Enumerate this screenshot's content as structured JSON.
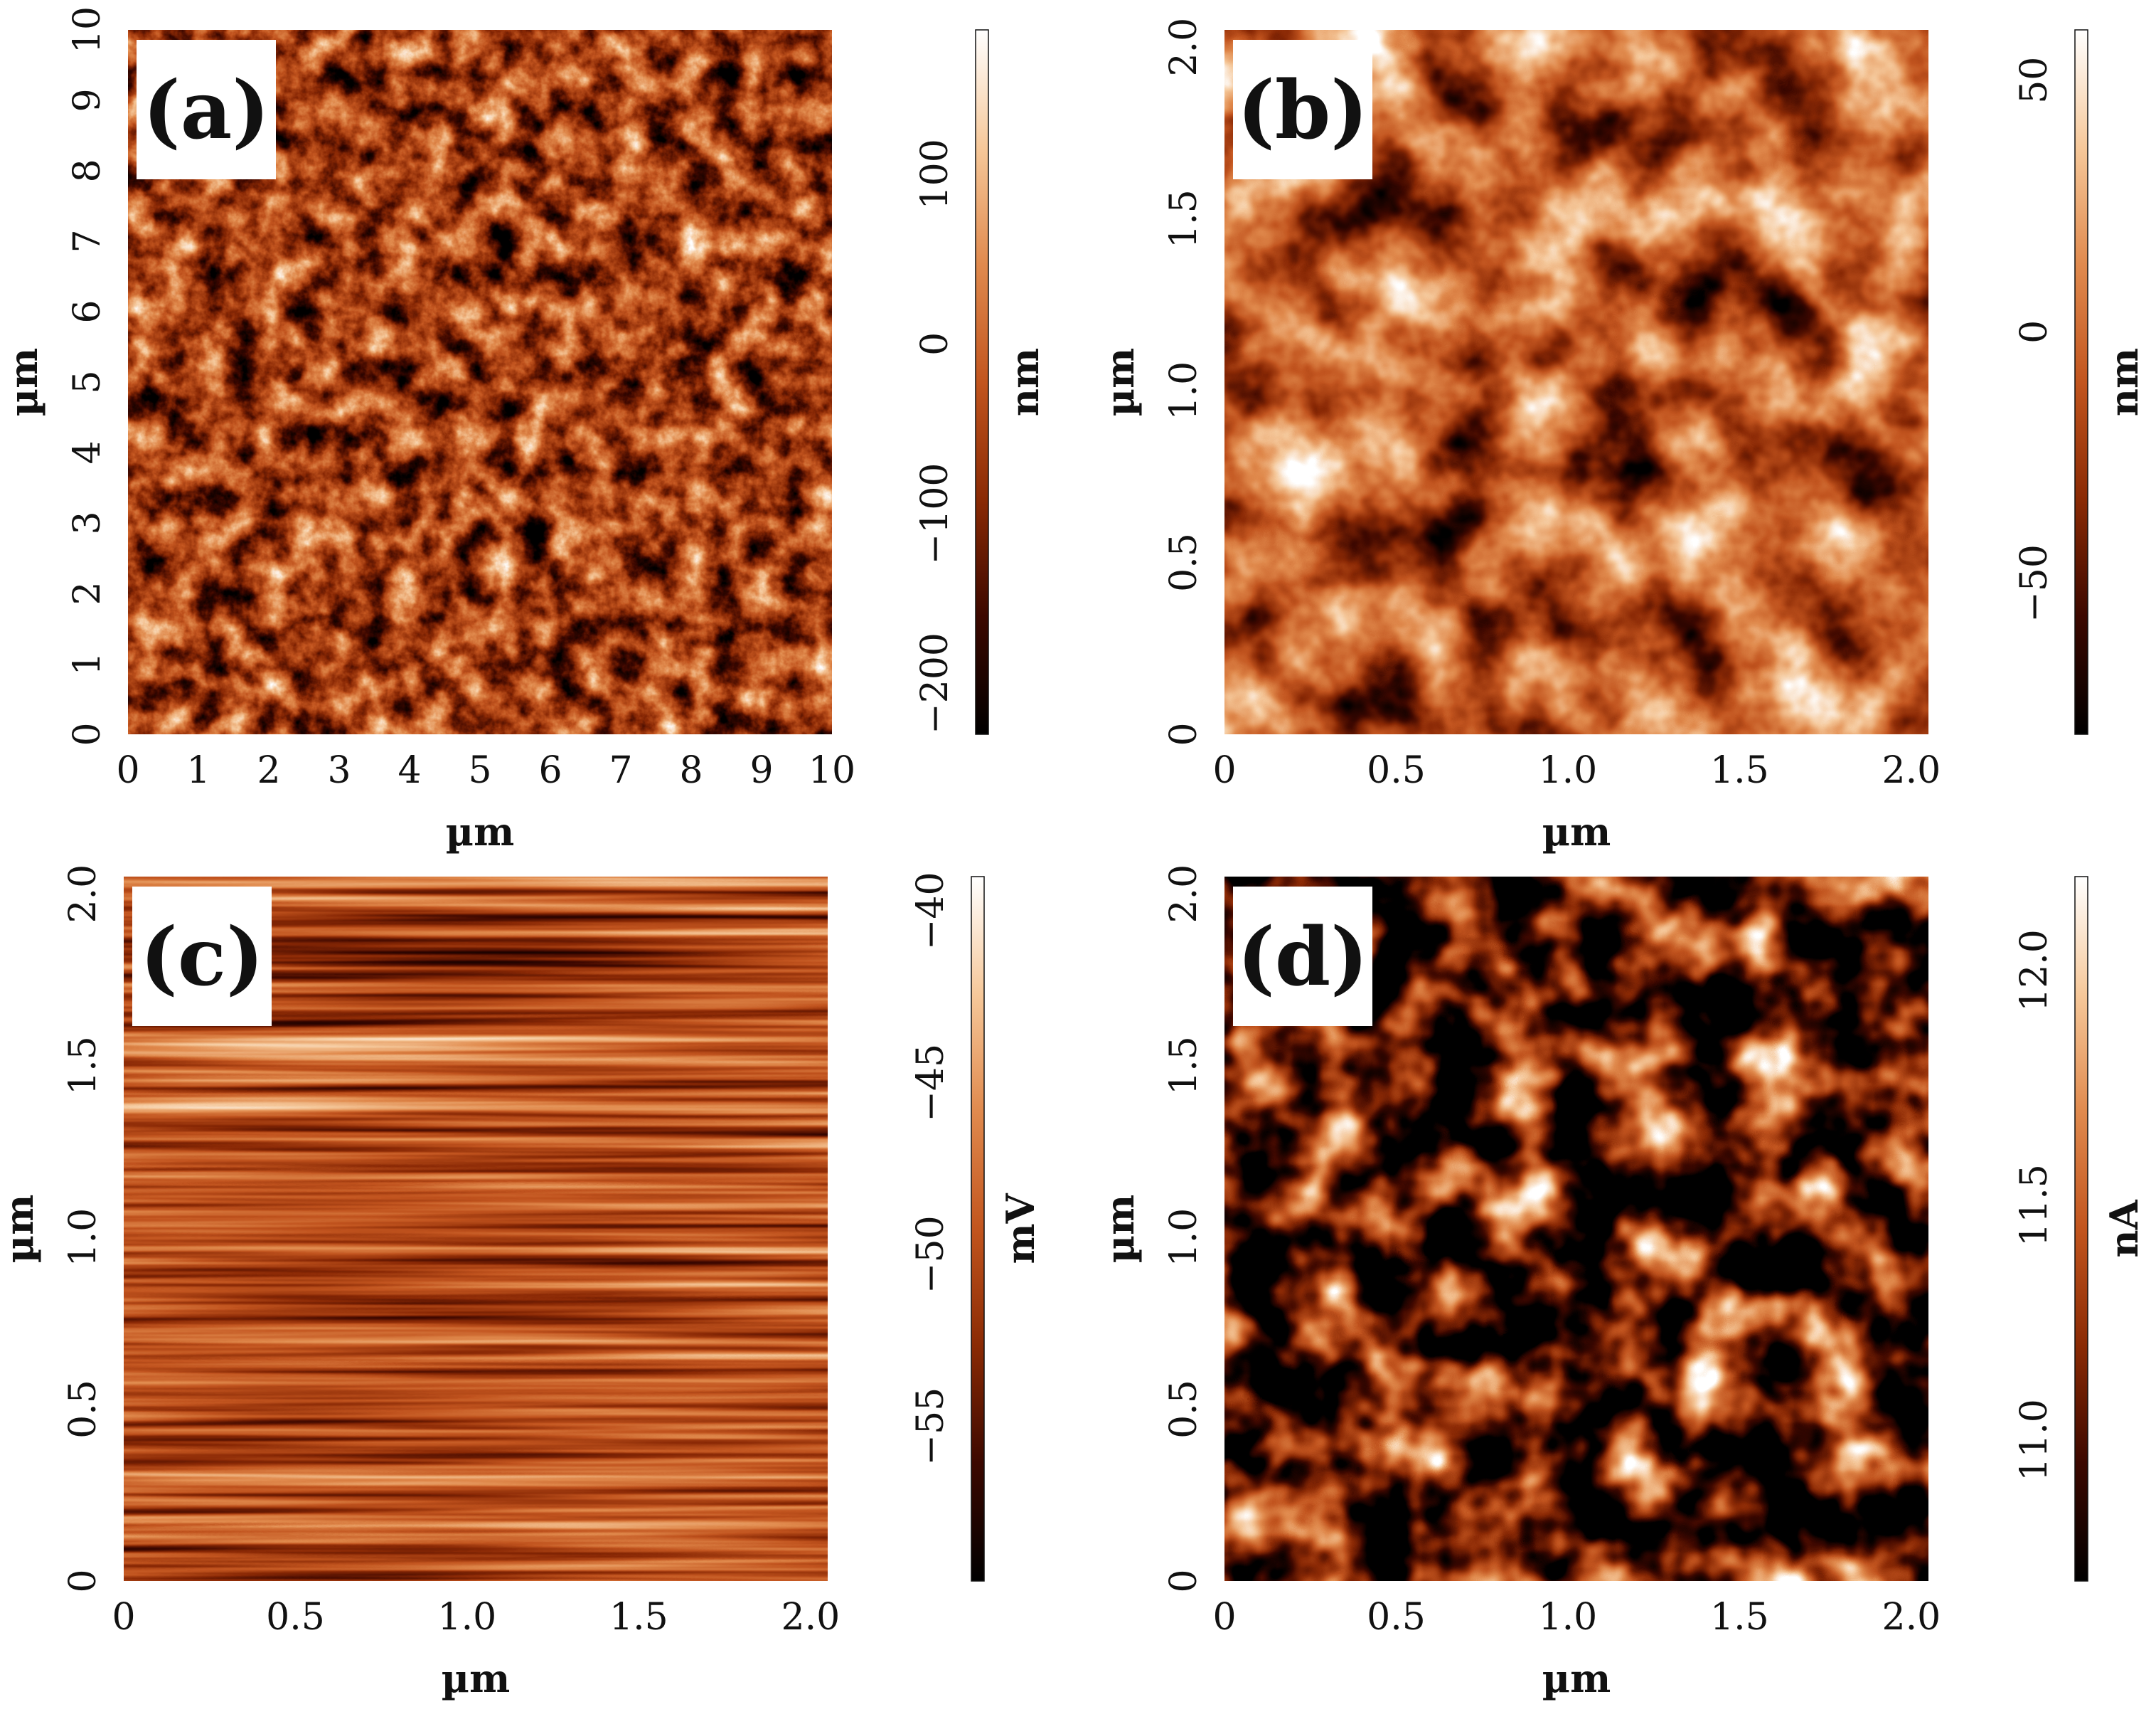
{
  "colors": {
    "colormap": [
      "#000000",
      "#3c0800",
      "#8a2a04",
      "#c2551e",
      "#e08a4e",
      "#f6c89a",
      "#ffffff"
    ],
    "panel_label_background": "#ffffff"
  },
  "chart_data": [
    {
      "type": "heatmap",
      "label": "(a)",
      "xlabel": "µm",
      "ylabel": "µm",
      "xlim": [
        0,
        10
      ],
      "ylim": [
        0,
        10
      ],
      "xticks": [
        "0",
        "1",
        "2",
        "3",
        "4",
        "5",
        "6",
        "7",
        "8",
        "9",
        "10"
      ],
      "yticks": [
        "0",
        "1",
        "2",
        "3",
        "4",
        "5",
        "6",
        "7",
        "8",
        "9",
        "10"
      ],
      "colorbar": {
        "unit": "nm",
        "range": [
          -230,
          185
        ],
        "ticks": [
          "−200",
          "−100",
          "0",
          "100"
        ],
        "tick_values": [
          -200,
          -100,
          0,
          100
        ]
      },
      "texture": "granular-fine"
    },
    {
      "type": "heatmap",
      "label": "(b)",
      "xlabel": "µm",
      "ylabel": "µm",
      "xlim": [
        0,
        2.05
      ],
      "ylim": [
        0,
        2.05
      ],
      "xticks": [
        "0",
        "0.5",
        "1.0",
        "1.5",
        "2.0"
      ],
      "yticks": [
        "0",
        "0.5",
        "1.0",
        "1.5",
        "2.0"
      ],
      "colorbar": {
        "unit": "nm",
        "range": [
          -80,
          60
        ],
        "ticks": [
          "−50",
          "0",
          "50"
        ],
        "tick_values": [
          -50,
          0,
          50
        ]
      },
      "texture": "granular-coarse"
    },
    {
      "type": "heatmap",
      "label": "(c)",
      "xlabel": "µm",
      "ylabel": "µm",
      "xlim": [
        0,
        2.05
      ],
      "ylim": [
        0,
        2.05
      ],
      "xticks": [
        "0",
        "0.5",
        "1.0",
        "1.5",
        "2.0"
      ],
      "yticks": [
        "0",
        "0.5",
        "1.0",
        "1.5",
        "2.0"
      ],
      "colorbar": {
        "unit": "mV",
        "range": [
          -59.5,
          -39.0
        ],
        "ticks": [
          "−55",
          "−50",
          "−45",
          "−40"
        ],
        "tick_values": [
          -55,
          -50,
          -45,
          -40
        ]
      },
      "texture": "streaky"
    },
    {
      "type": "heatmap",
      "label": "(d)",
      "xlabel": "µm",
      "ylabel": "µm",
      "xlim": [
        0,
        2.05
      ],
      "ylim": [
        0,
        2.05
      ],
      "xticks": [
        "0",
        "0.5",
        "1.0",
        "1.5",
        "2.0"
      ],
      "yticks": [
        "0",
        "0.5",
        "1.0",
        "1.5",
        "2.0"
      ],
      "colorbar": {
        "unit": "nA",
        "range": [
          10.7,
          12.2
        ],
        "ticks": [
          "11.0",
          "11.5",
          "12.0"
        ],
        "tick_values": [
          11.0,
          11.5,
          12.0
        ]
      },
      "texture": "cellular"
    }
  ]
}
